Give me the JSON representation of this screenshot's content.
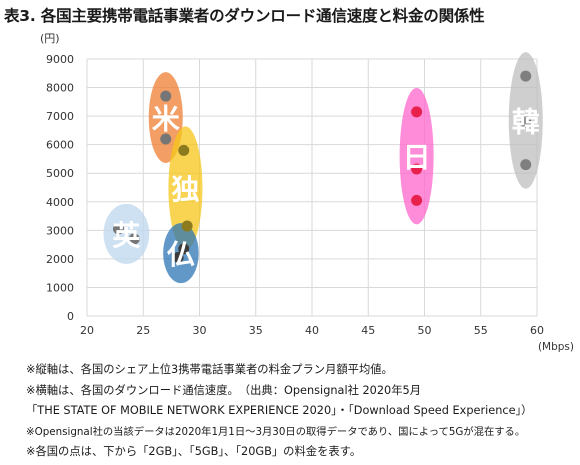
{
  "page_title": "表3. 各国主要携帯電話事業者のダウンロード通信速度と料金の関係性",
  "chart_data": {
    "type": "scatter",
    "ylabel": "(円)",
    "xlabel": "(Mbps)",
    "xlim": [
      20,
      60
    ],
    "ylim": [
      0,
      9000
    ],
    "xticks": [
      "20",
      "25",
      "30",
      "35",
      "40",
      "45",
      "50",
      "55",
      "60"
    ],
    "yticks": [
      "0",
      "1000",
      "2000",
      "3000",
      "4000",
      "5000",
      "6000",
      "7000",
      "8000",
      "9000"
    ],
    "grid": true,
    "series": [
      {
        "name": "米",
        "color": "#ed7d31",
        "point_color": "#767676",
        "points": [
          [
            27.0,
            6200
          ],
          [
            27.0,
            7700
          ]
        ]
      },
      {
        "name": "独",
        "color": "#f5c518",
        "point_color": "#8c7a1f",
        "points": [
          [
            28.9,
            3150
          ],
          [
            28.6,
            5800
          ]
        ]
      },
      {
        "name": "英",
        "color": "#bdd7ee",
        "point_color": "#767676",
        "points": [
          [
            22.8,
            3050
          ],
          [
            24.2,
            2700
          ]
        ]
      },
      {
        "name": "仏",
        "color": "#2e75b6",
        "point_color": "#3b3b3b",
        "points": [
          [
            28.6,
            2350
          ],
          [
            28.1,
            2050
          ]
        ]
      },
      {
        "name": "日",
        "color": "#ff66cc",
        "point_color": "#e8204c",
        "points": [
          [
            49.3,
            4050
          ],
          [
            49.3,
            5150
          ],
          [
            49.3,
            7150
          ]
        ]
      },
      {
        "name": "韓",
        "color": "#bfbfbf",
        "point_color": "#7f7f7f",
        "points": [
          [
            59.0,
            5300
          ],
          [
            59.0,
            6800
          ],
          [
            59.0,
            8400
          ]
        ]
      }
    ]
  },
  "notes": [
    "※縦軸は、各国のシェア上位3携帯電話事業者の料金プラン月額平均値。",
    "※横軸は、各国のダウンロード通信速度。　（出典：Opensignal社 2020年5月",
    "「THE STATE OF MOBILE NETWORK EXPERIENCE 2020」・「Download Speed Experience」）",
    "※Opensignal社の当該データは2020年1月1日～3月30日の取得データであり、国によって5Gが混在する。",
    "※各国の点は、下から「2GB」、「5GB」、「20GB」の料金を表す。"
  ]
}
